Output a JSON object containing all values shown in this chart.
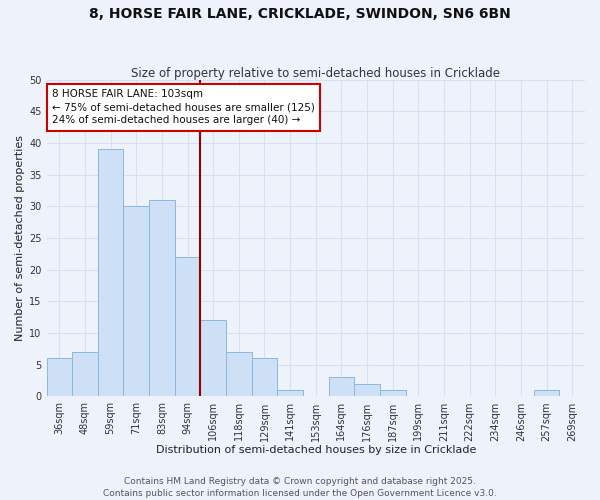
{
  "title_line1": "8, HORSE FAIR LANE, CRICKLADE, SWINDON, SN6 6BN",
  "title_line2": "Size of property relative to semi-detached houses in Cricklade",
  "xlabel": "Distribution of semi-detached houses by size in Cricklade",
  "ylabel": "Number of semi-detached properties",
  "bar_labels": [
    "36sqm",
    "48sqm",
    "59sqm",
    "71sqm",
    "83sqm",
    "94sqm",
    "106sqm",
    "118sqm",
    "129sqm",
    "141sqm",
    "153sqm",
    "164sqm",
    "176sqm",
    "187sqm",
    "199sqm",
    "211sqm",
    "222sqm",
    "234sqm",
    "246sqm",
    "257sqm",
    "269sqm"
  ],
  "bar_values": [
    6,
    7,
    39,
    30,
    31,
    22,
    12,
    7,
    6,
    1,
    0,
    3,
    2,
    1,
    0,
    0,
    0,
    0,
    0,
    1,
    0
  ],
  "bar_color": "#cde0f5",
  "bar_edge_color": "#89b8e0",
  "background_color": "#eef2fb",
  "grid_color": "#d8e0f0",
  "ylim": [
    0,
    50
  ],
  "yticks": [
    0,
    5,
    10,
    15,
    20,
    25,
    30,
    35,
    40,
    45,
    50
  ],
  "vline_x_index": 6,
  "vline_color": "#990000",
  "annotation_title": "8 HORSE FAIR LANE: 103sqm",
  "annotation_line1": "← 75% of semi-detached houses are smaller (125)",
  "annotation_line2": "24% of semi-detached houses are larger (40) →",
  "annotation_box_color": "#ffffff",
  "annotation_box_edge": "#cc0000",
  "footer_line1": "Contains HM Land Registry data © Crown copyright and database right 2025.",
  "footer_line2": "Contains public sector information licensed under the Open Government Licence v3.0.",
  "title_fontsize": 10,
  "subtitle_fontsize": 8.5,
  "axis_label_fontsize": 8,
  "tick_fontsize": 7,
  "annotation_fontsize": 7.5,
  "footer_fontsize": 6.5
}
